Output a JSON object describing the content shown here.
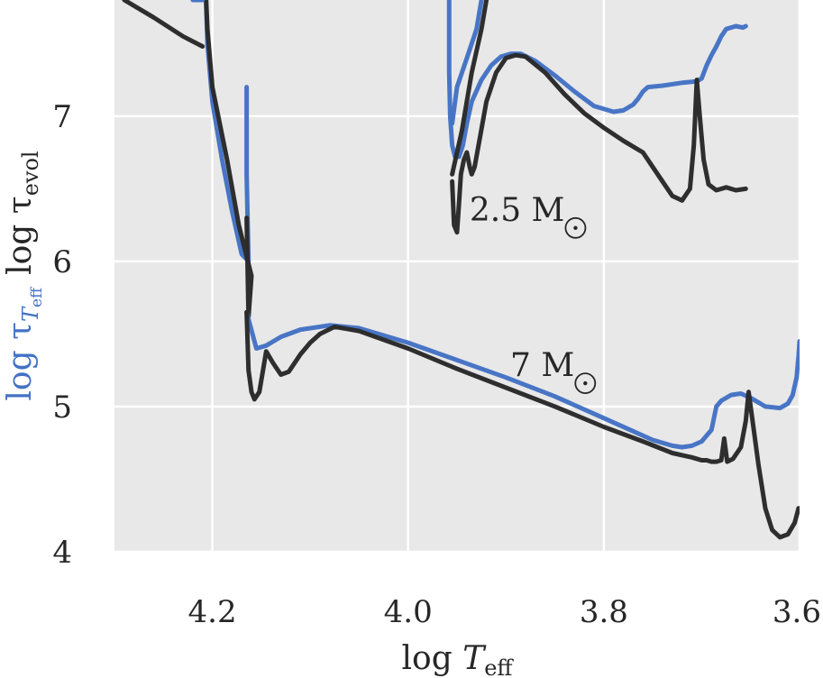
{
  "chart_data": {
    "type": "line",
    "xlabel_main": "log ",
    "xlabel_var": "T",
    "xlabel_sub": "eff",
    "ylabel_blue_main": "log τ",
    "ylabel_blue_sub_var": "T",
    "ylabel_blue_sub_sub": "eff",
    "ylabel_black_main": "log τ",
    "ylabel_black_sub": "evol",
    "xlim": [
      4.3,
      3.6
    ],
    "ylim": [
      4.0,
      7.8
    ],
    "x_reversed": true,
    "xticks": [
      4.2,
      4.0,
      3.8,
      3.6
    ],
    "xtick_labels": [
      "4.2",
      "4.0",
      "3.8",
      "3.6"
    ],
    "yticks": [
      4,
      5,
      6,
      7
    ],
    "ytick_labels": [
      "4",
      "5",
      "6",
      "7"
    ],
    "grid": true,
    "colors": {
      "blue": "#4472c4",
      "black": "#2a2a2a",
      "plot_bg": "#e8e8e8",
      "grid": "#ffffff"
    },
    "annotations": [
      {
        "number": "2.5",
        "unit": "M",
        "x": 3.84,
        "y": 6.28
      },
      {
        "number": "7",
        "unit": "M",
        "x": 3.83,
        "y": 5.21
      }
    ],
    "series": [
      {
        "color": "blue",
        "points": [
          [
            4.165,
            7.2
          ],
          [
            4.165,
            6.6
          ],
          [
            4.163,
            6.0
          ],
          [
            4.17,
            6.05
          ],
          [
            4.18,
            6.35
          ],
          [
            4.19,
            6.7
          ],
          [
            4.2,
            7.1
          ],
          [
            4.205,
            7.5
          ],
          [
            4.207,
            7.9
          ]
        ]
      },
      {
        "color": "black",
        "points": [
          [
            4.165,
            6.3
          ],
          [
            4.163,
            5.62
          ],
          [
            4.16,
            5.9
          ],
          [
            4.173,
            6.25
          ],
          [
            4.185,
            6.7
          ],
          [
            4.2,
            7.2
          ],
          [
            4.205,
            7.6
          ],
          [
            4.207,
            7.9
          ]
        ]
      },
      {
        "color": "blue",
        "points": [
          [
            4.21,
            7.8
          ],
          [
            4.22,
            7.8
          ]
        ]
      },
      {
        "color": "black",
        "points": [
          [
            4.29,
            7.8
          ],
          [
            4.26,
            7.68
          ],
          [
            4.23,
            7.55
          ],
          [
            4.21,
            7.48
          ]
        ]
      },
      {
        "color": "blue",
        "points": [
          [
            4.165,
            5.65
          ],
          [
            4.155,
            5.4
          ],
          [
            4.145,
            5.42
          ],
          [
            4.13,
            5.48
          ],
          [
            4.11,
            5.53
          ],
          [
            4.08,
            5.56
          ],
          [
            4.05,
            5.54
          ],
          [
            4.0,
            5.44
          ],
          [
            3.95,
            5.32
          ],
          [
            3.9,
            5.2
          ],
          [
            3.85,
            5.07
          ],
          [
            3.8,
            4.92
          ],
          [
            3.77,
            4.83
          ],
          [
            3.75,
            4.77
          ],
          [
            3.73,
            4.73
          ],
          [
            3.72,
            4.72
          ],
          [
            3.71,
            4.73
          ],
          [
            3.7,
            4.76
          ],
          [
            3.69,
            4.84
          ],
          [
            3.685,
            5.0
          ],
          [
            3.68,
            5.04
          ],
          [
            3.67,
            5.08
          ],
          [
            3.66,
            5.09
          ],
          [
            3.65,
            5.06
          ],
          [
            3.64,
            5.02
          ],
          [
            3.635,
            5.0
          ],
          [
            3.62,
            4.99
          ],
          [
            3.612,
            5.02
          ],
          [
            3.607,
            5.08
          ],
          [
            3.603,
            5.2
          ],
          [
            3.601,
            5.35
          ],
          [
            3.6,
            5.45
          ]
        ]
      },
      {
        "color": "black",
        "points": [
          [
            4.165,
            5.65
          ],
          [
            4.163,
            5.25
          ],
          [
            4.16,
            5.1
          ],
          [
            4.157,
            5.05
          ],
          [
            4.152,
            5.1
          ],
          [
            4.145,
            5.38
          ],
          [
            4.138,
            5.3
          ],
          [
            4.13,
            5.22
          ],
          [
            4.122,
            5.24
          ],
          [
            4.11,
            5.36
          ],
          [
            4.1,
            5.44
          ],
          [
            4.09,
            5.5
          ],
          [
            4.075,
            5.55
          ],
          [
            4.05,
            5.52
          ],
          [
            4.0,
            5.4
          ],
          [
            3.95,
            5.26
          ],
          [
            3.9,
            5.13
          ],
          [
            3.85,
            5.0
          ],
          [
            3.8,
            4.86
          ],
          [
            3.76,
            4.76
          ],
          [
            3.73,
            4.68
          ],
          [
            3.71,
            4.65
          ],
          [
            3.7,
            4.63
          ],
          [
            3.695,
            4.63
          ],
          [
            3.69,
            4.62
          ],
          [
            3.685,
            4.62
          ],
          [
            3.68,
            4.63
          ],
          [
            3.677,
            4.78
          ],
          [
            3.674,
            4.62
          ],
          [
            3.668,
            4.64
          ],
          [
            3.66,
            4.72
          ],
          [
            3.655,
            4.9
          ],
          [
            3.652,
            5.1
          ],
          [
            3.648,
            4.9
          ],
          [
            3.642,
            4.6
          ],
          [
            3.635,
            4.3
          ],
          [
            3.628,
            4.15
          ],
          [
            3.62,
            4.1
          ],
          [
            3.612,
            4.12
          ],
          [
            3.605,
            4.2
          ],
          [
            3.601,
            4.3
          ]
        ]
      },
      {
        "color": "blue",
        "points": [
          [
            3.958,
            7.8
          ],
          [
            3.958,
            7.3
          ],
          [
            3.957,
            7.0
          ],
          [
            3.955,
            6.8
          ],
          [
            3.952,
            6.72
          ],
          [
            3.948,
            6.72
          ],
          [
            3.944,
            6.8
          ],
          [
            3.94,
            6.95
          ],
          [
            3.935,
            7.1
          ],
          [
            3.925,
            7.25
          ],
          [
            3.915,
            7.35
          ],
          [
            3.905,
            7.41
          ],
          [
            3.895,
            7.43
          ],
          [
            3.885,
            7.43
          ],
          [
            3.87,
            7.38
          ],
          [
            3.85,
            7.28
          ],
          [
            3.83,
            7.17
          ],
          [
            3.81,
            7.07
          ],
          [
            3.79,
            7.03
          ],
          [
            3.78,
            7.04
          ],
          [
            3.77,
            7.08
          ],
          [
            3.765,
            7.12
          ],
          [
            3.76,
            7.17
          ],
          [
            3.755,
            7.2
          ],
          [
            3.74,
            7.21
          ],
          [
            3.72,
            7.23
          ],
          [
            3.705,
            7.24
          ],
          [
            3.7,
            7.26
          ],
          [
            3.695,
            7.35
          ],
          [
            3.69,
            7.42
          ],
          [
            3.685,
            7.48
          ],
          [
            3.68,
            7.55
          ],
          [
            3.675,
            7.6
          ],
          [
            3.665,
            7.62
          ],
          [
            3.658,
            7.61
          ],
          [
            3.655,
            7.62
          ]
        ]
      },
      {
        "color": "blue",
        "points": [
          [
            3.955,
            6.95
          ],
          [
            3.95,
            7.2
          ],
          [
            3.94,
            7.4
          ],
          [
            3.93,
            7.6
          ],
          [
            3.925,
            7.8
          ]
        ]
      },
      {
        "color": "black",
        "points": [
          [
            3.955,
            6.55
          ],
          [
            3.953,
            6.25
          ],
          [
            3.95,
            6.2
          ],
          [
            3.948,
            6.4
          ],
          [
            3.946,
            6.6
          ],
          [
            3.943,
            6.7
          ],
          [
            3.94,
            6.75
          ],
          [
            3.937,
            6.65
          ],
          [
            3.935,
            6.6
          ],
          [
            3.932,
            6.65
          ],
          [
            3.928,
            6.8
          ],
          [
            3.92,
            7.1
          ],
          [
            3.91,
            7.3
          ],
          [
            3.9,
            7.4
          ],
          [
            3.89,
            7.42
          ],
          [
            3.88,
            7.41
          ],
          [
            3.86,
            7.3
          ],
          [
            3.84,
            7.15
          ],
          [
            3.82,
            7.02
          ],
          [
            3.8,
            6.92
          ],
          [
            3.78,
            6.83
          ],
          [
            3.76,
            6.75
          ],
          [
            3.75,
            6.65
          ],
          [
            3.74,
            6.55
          ],
          [
            3.73,
            6.45
          ],
          [
            3.72,
            6.42
          ],
          [
            3.712,
            6.5
          ],
          [
            3.708,
            6.8
          ],
          [
            3.705,
            7.25
          ],
          [
            3.702,
            7.0
          ],
          [
            3.698,
            6.7
          ],
          [
            3.693,
            6.53
          ],
          [
            3.685,
            6.49
          ],
          [
            3.675,
            6.51
          ],
          [
            3.665,
            6.49
          ],
          [
            3.655,
            6.5
          ]
        ]
      },
      {
        "color": "black",
        "points": [
          [
            3.955,
            6.6
          ],
          [
            3.945,
            6.9
          ],
          [
            3.935,
            7.3
          ],
          [
            3.925,
            7.6
          ],
          [
            3.92,
            7.8
          ]
        ]
      }
    ]
  }
}
